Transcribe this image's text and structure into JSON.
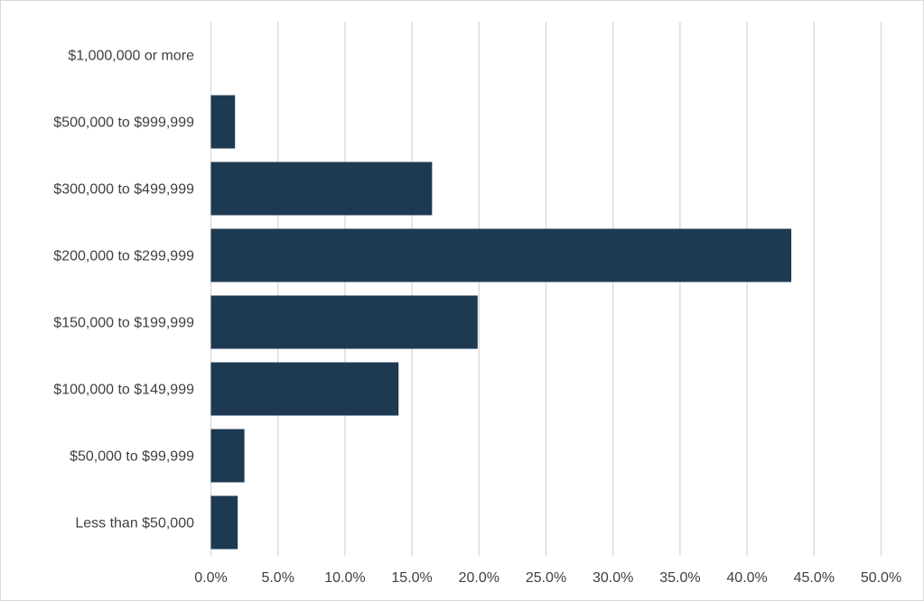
{
  "chart_data": {
    "type": "bar",
    "orientation": "horizontal",
    "categories": [
      "$1,000,000 or more",
      "$500,000 to $999,999",
      "$300,000 to $499,999",
      "$200,000 to $299,999",
      "$150,000 to $199,999",
      "$100,000 to $149,999",
      "$50,000 to $99,999",
      "Less than $50,000"
    ],
    "values": [
      0.0,
      1.8,
      16.5,
      43.3,
      19.9,
      14.0,
      2.5,
      2.0
    ],
    "xlim": [
      0,
      50
    ],
    "x_ticks": [
      "0.0%",
      "5.0%",
      "10.0%",
      "15.0%",
      "20.0%",
      "25.0%",
      "30.0%",
      "35.0%",
      "40.0%",
      "45.0%",
      "50.0%"
    ],
    "x_tick_values": [
      0,
      5,
      10,
      15,
      20,
      25,
      30,
      35,
      40,
      45,
      50
    ],
    "grid": "vertical",
    "legend": "none",
    "colors": {
      "bar": "#1e3a53",
      "grid": "#d9d9d9",
      "text": "#404040"
    }
  }
}
